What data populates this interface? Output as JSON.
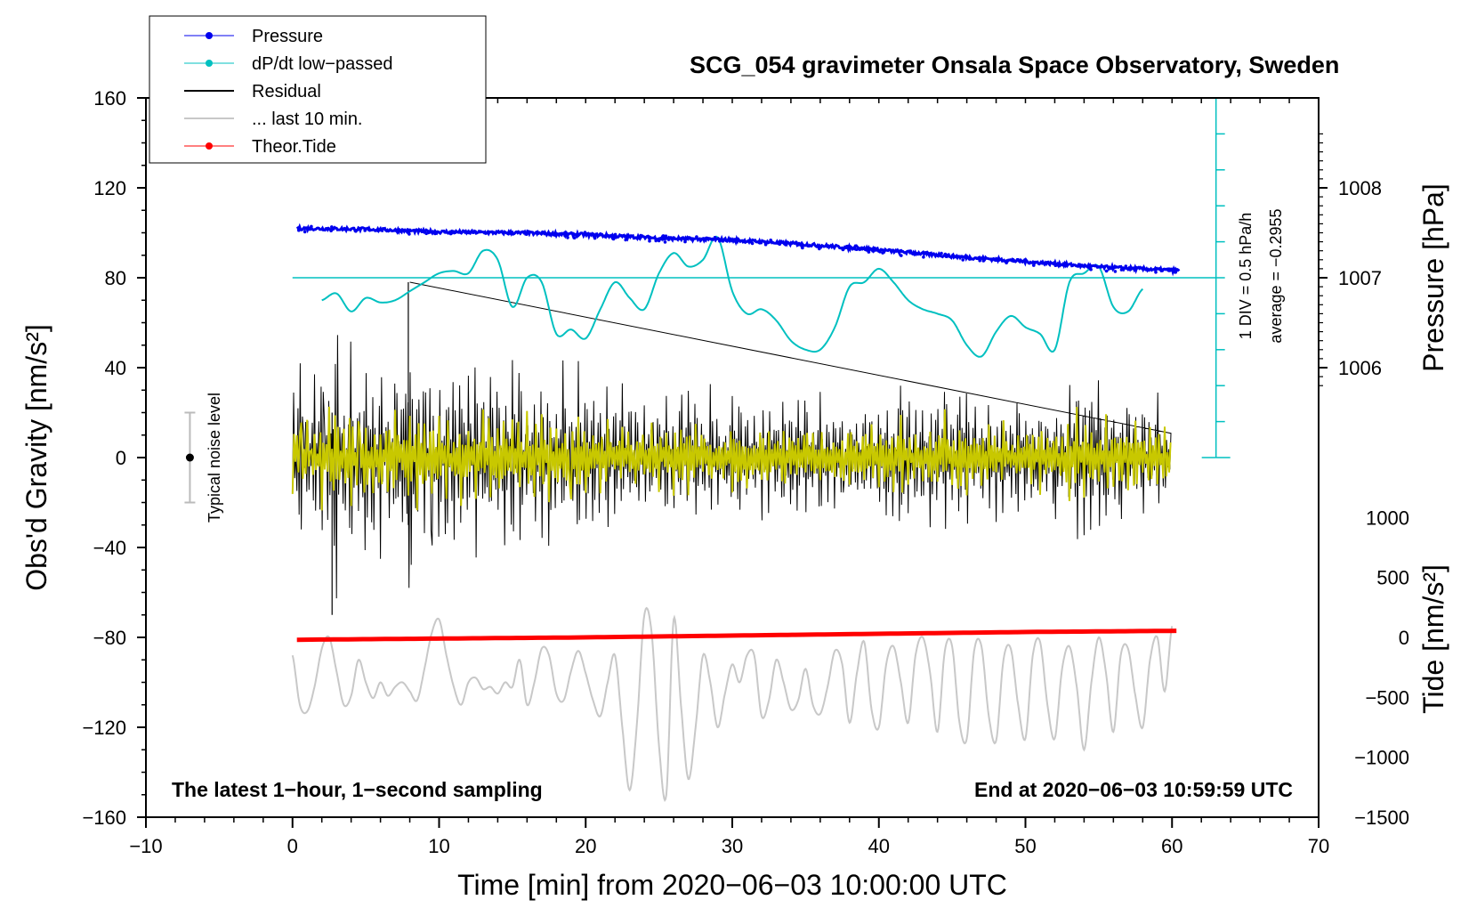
{
  "chart_data": {
    "type": "line",
    "title": "SCG_054 gravimeter Onsala Space Observatory, Sweden",
    "xlabel": "Time [min] from 2020−06−03 10:00:00 UTC",
    "ylabel_left": "Obs'd Gravity [nm/s²]",
    "ylabel_pressure": "Pressure [hPa]",
    "ylabel_tide": "Tide [nm/s²]",
    "xlim": [
      -10,
      70
    ],
    "ylim": [
      -160,
      160
    ],
    "x_ticks": [
      {
        "v": -10,
        "label": "−10"
      },
      {
        "v": 0,
        "label": "0"
      },
      {
        "v": 10,
        "label": "10"
      },
      {
        "v": 20,
        "label": "20"
      },
      {
        "v": 30,
        "label": "30"
      },
      {
        "v": 40,
        "label": "40"
      },
      {
        "v": 50,
        "label": "50"
      },
      {
        "v": 60,
        "label": "60"
      },
      {
        "v": 70,
        "label": "70"
      }
    ],
    "y_ticks": [
      {
        "v": 160,
        "label": "160"
      },
      {
        "v": 120,
        "label": "120"
      },
      {
        "v": 80,
        "label": "80"
      },
      {
        "v": 40,
        "label": "40"
      },
      {
        "v": 0,
        "label": "0"
      },
      {
        "v": -40,
        "label": "−40"
      },
      {
        "v": -80,
        "label": "−80"
      },
      {
        "v": -120,
        "label": "−120"
      },
      {
        "v": -160,
        "label": "−160"
      }
    ],
    "pressure_axis": {
      "ticks": [
        {
          "v": 1008,
          "label": "1008"
        },
        {
          "v": 1007,
          "label": "1007"
        },
        {
          "v": 1006,
          "label": "1006"
        }
      ],
      "gravity_at_1007": 80,
      "gravity_per_hPa": 40
    },
    "tide_axis": {
      "ticks": [
        {
          "v": 1000,
          "label": "1000"
        },
        {
          "v": 500,
          "label": "500"
        },
        {
          "v": 0,
          "label": "0"
        },
        {
          "v": -500,
          "label": "−500"
        },
        {
          "v": -1000,
          "label": "−1000"
        },
        {
          "v": -1500,
          "label": "−1500"
        }
      ],
      "gravity_at_zero": -80,
      "gravity_per_unit": 0.0533
    },
    "noise_bar": {
      "label": "Typical noise level",
      "x": -7,
      "center": 0,
      "half_width": 20
    },
    "dpdt_scale": {
      "div_label": "1 DIV = 0.5 hPa/h",
      "average_label": "average = −0.2955",
      "x": 63,
      "y_from": 0,
      "y_to": 160,
      "baseline": 80
    },
    "series": [
      {
        "name": "Pressure",
        "color": "#0000ee",
        "unit": "hPa",
        "x": [
          0,
          5,
          10,
          15,
          20,
          25,
          30,
          35,
          40,
          45,
          50,
          55,
          60.5
        ],
        "values": [
          1007.55,
          1007.54,
          1007.51,
          1007.5,
          1007.48,
          1007.44,
          1007.42,
          1007.37,
          1007.31,
          1007.24,
          1007.18,
          1007.12,
          1007.08
        ]
      },
      {
        "name": "dP/dt low−passed",
        "color": "#00c0c0",
        "unit": "nm/s2 display",
        "x": [
          2,
          3,
          4,
          5,
          6,
          7,
          8,
          9,
          10,
          11,
          12,
          13,
          14,
          15,
          16,
          17,
          18,
          19,
          20,
          21,
          22,
          23,
          24,
          25,
          26,
          27,
          28,
          29,
          30,
          31,
          32,
          33,
          34,
          35,
          36,
          37,
          38,
          39,
          40,
          41,
          42,
          43,
          44,
          45,
          46,
          47,
          48,
          49,
          50,
          51,
          52,
          53,
          54,
          55,
          56,
          57,
          58
        ],
        "values": [
          70,
          73,
          65,
          71,
          69,
          70,
          74,
          78,
          82,
          83,
          82,
          92,
          88,
          67,
          80,
          78,
          55,
          57,
          53,
          66,
          78,
          71,
          66,
          82,
          91,
          85,
          88,
          98,
          74,
          64,
          66,
          61,
          52,
          48,
          48,
          58,
          76,
          78,
          84,
          78,
          70,
          66,
          64,
          61,
          50,
          45,
          56,
          63,
          58,
          55,
          48,
          78,
          82,
          85,
          67,
          65,
          75
        ]
      },
      {
        "name": "Residual",
        "color": "#000000",
        "unit": "nm/s2",
        "x": [
          0,
          0.5,
          1,
          1.5,
          2,
          2.5,
          3,
          3.5,
          4,
          4.5,
          5,
          5.5,
          6,
          6.5,
          7,
          7.5,
          8,
          8.5,
          9,
          9.5,
          10,
          10.5,
          11,
          11.5,
          12,
          12.5,
          13,
          13.5,
          14,
          14.5,
          15,
          15.5,
          16,
          16.5,
          17,
          17.5,
          18,
          18.5,
          19,
          19.5,
          20,
          20.5,
          21,
          21.5,
          22,
          22.5,
          23,
          23.5,
          24,
          24.5,
          25,
          25.5,
          26,
          26.5,
          27,
          27.5,
          28,
          28.5,
          29,
          29.5,
          30,
          30.5,
          31,
          31.5,
          32,
          32.5,
          33,
          33.5,
          34,
          34.5,
          35,
          35.5,
          36,
          36.5,
          37,
          37.5,
          38,
          38.5,
          39,
          39.5,
          40,
          40.5,
          41,
          41.5,
          42,
          42.5,
          43,
          43.5,
          44,
          44.5,
          45,
          45.5,
          46,
          46.5,
          47,
          47.5,
          48,
          48.5,
          49,
          49.5,
          50,
          50.5,
          51,
          51.5,
          52,
          52.5,
          53,
          53.5,
          54,
          54.5,
          55,
          55.5,
          56,
          56.5,
          57,
          57.5,
          58,
          58.5,
          59,
          59.5,
          60
        ],
        "values": [
          -40,
          50,
          -30,
          35,
          -45,
          45,
          -72,
          40,
          -55,
          38,
          -50,
          45,
          -48,
          40,
          -45,
          30,
          78,
          -45,
          40,
          -50,
          42,
          -45,
          38,
          -48,
          40,
          -45,
          42,
          -52,
          40,
          -48,
          45,
          -50,
          40,
          -45,
          42,
          -40,
          38,
          -48,
          35,
          -40,
          40,
          -30,
          30,
          -35,
          28,
          -32,
          30,
          -30,
          25,
          -28,
          28,
          -30,
          30,
          -32,
          30,
          -28,
          25,
          -30,
          28,
          -25,
          30,
          -30,
          25,
          -28,
          30,
          -25,
          28,
          -30,
          25,
          -28,
          30,
          -25,
          28,
          -22,
          25,
          -25,
          28,
          -25,
          30,
          -28,
          25,
          -30,
          28,
          -45,
          30,
          -25,
          25,
          -30,
          28,
          -40,
          30,
          -38,
          32,
          -30,
          28,
          -25,
          25,
          -30,
          22,
          -28,
          25,
          -30,
          28,
          -25,
          30,
          -20,
          48,
          -50,
          45,
          -40,
          35,
          -35,
          30,
          -30,
          28,
          -32,
          30,
          -25,
          28,
          -22,
          25
        ]
      },
      {
        "name": "... last 10 min.",
        "color": "#c8c8c8",
        "unit": "nm/s2",
        "x": [
          0,
          0.5,
          1,
          1.5,
          2,
          2.5,
          3,
          3.5,
          4,
          4.5,
          5,
          5.5,
          6,
          6.5,
          7,
          7.5,
          8,
          8.5,
          9,
          9.5,
          10,
          10.5,
          11,
          11.5,
          12,
          12.5,
          13,
          13.5,
          14,
          14.5,
          15,
          15.5,
          16,
          16.5,
          17,
          17.5,
          18,
          18.5,
          19,
          19.5,
          20,
          20.5,
          21,
          21.5,
          22,
          22.5,
          23,
          23.5,
          24,
          24.5,
          25,
          25.5,
          26,
          26.5,
          27,
          27.5,
          28,
          28.5,
          29,
          29.5,
          30,
          30.5,
          31,
          31.5,
          32,
          32.5,
          33,
          33.5,
          34,
          34.5,
          35,
          35.5,
          36,
          36.5,
          37,
          37.5,
          38,
          38.5,
          39,
          39.5,
          40,
          40.5,
          41,
          41.5,
          42,
          42.5,
          43,
          43.5,
          44,
          44.5,
          45,
          45.5,
          46,
          46.5,
          47,
          47.5,
          48,
          48.5,
          49,
          49.5,
          50,
          50.5,
          51,
          51.5,
          52,
          52.5,
          53,
          53.5,
          54,
          54.5,
          55,
          55.5,
          56,
          56.5,
          57,
          57.5,
          58,
          58.5,
          59,
          59.5,
          60
        ],
        "values": [
          -88,
          -110,
          -113,
          -102,
          -85,
          -80,
          -95,
          -110,
          -106,
          -90,
          -100,
          -107,
          -100,
          -106,
          -102,
          -100,
          -104,
          -108,
          -94,
          -78,
          -72,
          -88,
          -102,
          -110,
          -100,
          -98,
          -103,
          -102,
          -105,
          -100,
          -102,
          -90,
          -110,
          -100,
          -85,
          -88,
          -105,
          -108,
          -95,
          -86,
          -96,
          -108,
          -115,
          -100,
          -88,
          -120,
          -148,
          -118,
          -70,
          -78,
          -128,
          -150,
          -72,
          -110,
          -143,
          -120,
          -88,
          -100,
          -120,
          -105,
          -92,
          -100,
          -88,
          -88,
          -115,
          -108,
          -90,
          -100,
          -112,
          -108,
          -94,
          -110,
          -114,
          -102,
          -86,
          -92,
          -118,
          -96,
          -82,
          -112,
          -120,
          -92,
          -84,
          -100,
          -118,
          -88,
          -80,
          -96,
          -122,
          -86,
          -84,
          -118,
          -125,
          -86,
          -84,
          -115,
          -126,
          -90,
          -85,
          -110,
          -125,
          -88,
          -82,
          -110,
          -125,
          -94,
          -84,
          -102,
          -130,
          -100,
          -80,
          -96,
          -122,
          -88,
          -85,
          -106,
          -120,
          -90,
          -80,
          -104,
          -75
        ]
      },
      {
        "name": "Theor.Tide",
        "color": "#ff0000",
        "unit": "nm/s2 tide",
        "x": [
          0,
          10,
          20,
          30,
          40,
          50,
          60.5
        ],
        "values": [
          -20,
          -10,
          0,
          15,
          30,
          45,
          55
        ]
      }
    ],
    "annotations": {
      "left": "The latest 1−hour, 1−second sampling",
      "right": "End at 2020−06−03 10:59:59 UTC"
    },
    "legend": {
      "placement": "top-left",
      "entries": [
        {
          "label": "Pressure",
          "color": "#0000ee",
          "style": "line-dot"
        },
        {
          "label": "dP/dt low−passed",
          "color": "#00c0c0",
          "style": "line-dot"
        },
        {
          "label": "Residual",
          "color": "#000000",
          "style": "line"
        },
        {
          "label": "... last 10 min.",
          "color": "#c8c8c8",
          "style": "line"
        },
        {
          "label": "Theor.Tide",
          "color": "#ff0000",
          "style": "line-dot"
        }
      ]
    },
    "colors": {
      "tick_label": "#000000",
      "frame": "#000000",
      "yellow_trace": "#c8c800"
    }
  }
}
